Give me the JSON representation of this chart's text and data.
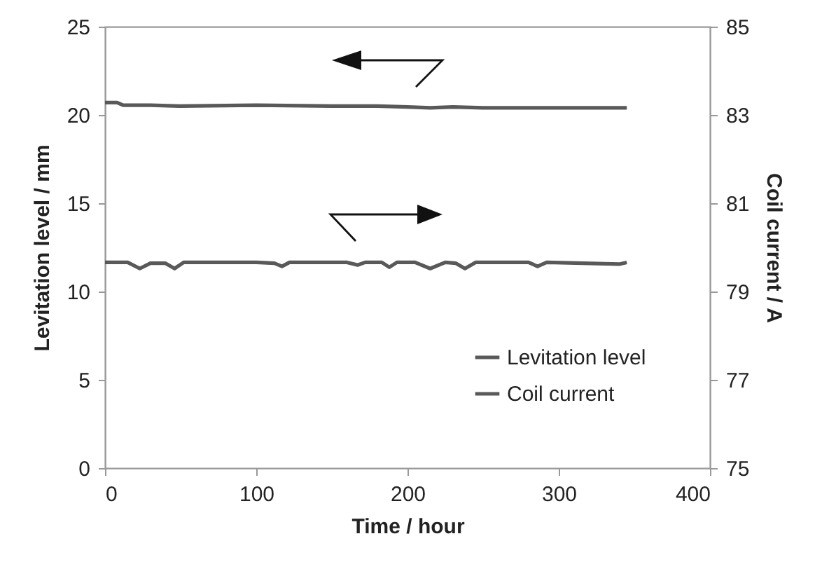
{
  "chart_data": {
    "type": "line",
    "xlabel": "Time / hour",
    "ylabel": "Levitation level / mm",
    "y2label": "Coil current / A",
    "xlim": [
      0,
      400
    ],
    "xticks": [
      0,
      100,
      200,
      300,
      400
    ],
    "ylim": [
      0,
      25
    ],
    "yticks": [
      0,
      5,
      10,
      15,
      20,
      25
    ],
    "y2lim": [
      75,
      85
    ],
    "y2ticks": [
      75,
      77,
      79,
      81,
      83,
      85
    ],
    "grid": false,
    "legend": "bottom right",
    "marker": "none",
    "line_style": "solid",
    "series": [
      {
        "name": "Levitation level",
        "color": "#595959",
        "x": [
          0,
          8,
          12,
          30,
          50,
          100,
          150,
          180,
          200,
          215,
          230,
          250,
          300,
          345
        ],
        "values": [
          20.7,
          20.7,
          20.55,
          20.55,
          20.5,
          20.55,
          20.5,
          20.5,
          20.45,
          20.4,
          20.45,
          20.4,
          20.4,
          20.4
        ]
      },
      {
        "name": "Coil current",
        "color": "#595959",
        "axis": "y2",
        "x": [
          0,
          15,
          23,
          30,
          40,
          46,
          52,
          100,
          112,
          117,
          122,
          160,
          167,
          172,
          183,
          188,
          193,
          205,
          215,
          225,
          232,
          238,
          245,
          280,
          286,
          292,
          340,
          345
        ],
        "values": [
          79.66,
          79.66,
          79.52,
          79.64,
          79.64,
          79.52,
          79.66,
          79.66,
          79.64,
          79.57,
          79.66,
          79.66,
          79.6,
          79.66,
          79.66,
          79.55,
          79.66,
          79.66,
          79.52,
          79.66,
          79.64,
          79.52,
          79.66,
          79.66,
          79.57,
          79.66,
          79.62,
          79.66
        ]
      }
    ]
  }
}
